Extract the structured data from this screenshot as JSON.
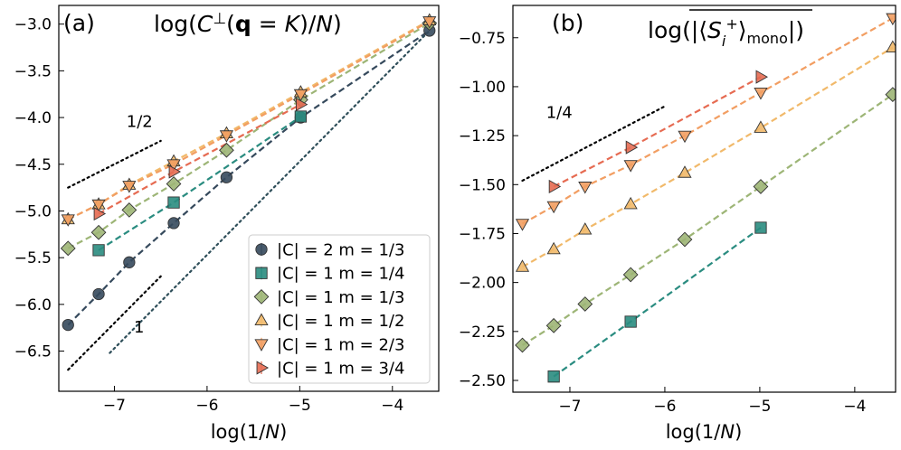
{
  "chart_data": [
    {
      "type": "line",
      "panel_label": "(a)",
      "title": "log(C⊥(q = K)/N)",
      "xlabel": "log(1/N)",
      "ylabel": "",
      "xlim": [
        -7.6,
        -3.5
      ],
      "ylim": [
        -6.93,
        -2.8
      ],
      "xticks": [
        -7,
        -6,
        -5,
        -4
      ],
      "xtick_labels": [
        "−7",
        "−6",
        "−5",
        "−4"
      ],
      "yticks": [
        -6.5,
        -6.0,
        -5.5,
        -5.0,
        -4.5,
        -4.0,
        -3.5,
        -3.0
      ],
      "ytick_labels": [
        "−6.5",
        "−6.0",
        "−5.5",
        "−5.0",
        "−4.5",
        "−4.0",
        "−3.5",
        "−3.0"
      ],
      "series": [
        {
          "name": "|C| = 2 m = 1/3",
          "color": "#35495c",
          "marker": "circle",
          "x": [
            -7.5,
            -7.17,
            -6.84,
            -6.36,
            -5.79,
            -4.99,
            -3.6
          ],
          "y": [
            -6.22,
            -5.89,
            -5.55,
            -5.13,
            -4.64,
            -4.0,
            -3.07
          ]
        },
        {
          "name": "|C| = 1 m = 1/4",
          "color": "#2a8c80",
          "marker": "square",
          "x": [
            -7.17,
            -6.36,
            -4.99
          ],
          "y": [
            -5.42,
            -4.91,
            -3.99
          ]
        },
        {
          "name": "|C| = 1 m = 1/3",
          "color": "#9db576",
          "marker": "diamond",
          "x": [
            -7.5,
            -7.17,
            -6.84,
            -6.36,
            -5.79,
            -4.99,
            -3.6
          ],
          "y": [
            -5.4,
            -5.23,
            -4.99,
            -4.71,
            -4.35,
            -3.81,
            -2.99
          ]
        },
        {
          "name": "|C| = 1 m = 1/2",
          "color": "#f1b96a",
          "marker": "triangle-up",
          "x": [
            -7.5,
            -7.17,
            -6.84,
            -6.36,
            -5.79,
            -4.99,
            -3.6
          ],
          "y": [
            -5.09,
            -4.93,
            -4.72,
            -4.47,
            -4.17,
            -3.73,
            -2.96
          ]
        },
        {
          "name": "|C| = 1 m = 2/3",
          "color": "#f29e62",
          "marker": "triangle-down",
          "x": [
            -7.5,
            -7.17,
            -6.84,
            -6.36,
            -5.79,
            -4.99,
            -3.6
          ],
          "y": [
            -5.09,
            -4.93,
            -4.73,
            -4.5,
            -4.19,
            -3.75,
            -2.97
          ]
        },
        {
          "name": "|C| = 1 m = 3/4",
          "color": "#e66b52",
          "marker": "triangle-right",
          "x": [
            -7.17,
            -6.36,
            -4.99
          ],
          "y": [
            -5.03,
            -4.58,
            -3.86
          ]
        }
      ],
      "guides": [
        {
          "label": "1/2",
          "slope": 0.5,
          "x": [
            -7.5,
            -6.5
          ],
          "y": [
            -4.75,
            -4.25
          ]
        },
        {
          "label": "1",
          "slope": 1,
          "x": [
            -7.5,
            -6.5
          ],
          "y": [
            -6.7,
            -5.7
          ]
        },
        {
          "label": "",
          "slope": 1,
          "x": [
            -7.05,
            -3.6
          ],
          "y": [
            -6.52,
            -3.07
          ]
        }
      ],
      "guide_labels": [
        {
          "text": "1/2",
          "x": -6.87,
          "y": -4.1
        },
        {
          "text": "1",
          "x": -6.79,
          "y": -6.3
        }
      ],
      "legend": "lower-right"
    },
    {
      "type": "line",
      "panel_label": "(b)",
      "title": "log(|⟨Sᵢ⁺⟩mono|)",
      "xlabel": "log(1/N)",
      "ylabel": "",
      "xlim": [
        -7.6,
        -3.57
      ],
      "ylim": [
        -2.56,
        -0.585
      ],
      "xticks": [
        -7,
        -6,
        -5,
        -4
      ],
      "xtick_labels": [
        "−7",
        "−6",
        "−5",
        "−4"
      ],
      "yticks": [
        -2.5,
        -2.25,
        -2.0,
        -1.75,
        -1.5,
        -1.25,
        -1.0,
        -0.75
      ],
      "ytick_labels": [
        "−2.50",
        "−2.25",
        "−2.00",
        "−1.75",
        "−1.50",
        "−1.25",
        "−1.00",
        "−0.75"
      ],
      "series": [
        {
          "name": "|C| = 1 m = 1/4",
          "color": "#2a8c80",
          "marker": "square",
          "x": [
            -7.17,
            -6.36,
            -4.99
          ],
          "y": [
            -2.48,
            -2.2,
            -1.72
          ]
        },
        {
          "name": "|C| = 1 m = 1/3",
          "color": "#9db576",
          "marker": "diamond",
          "x": [
            -7.5,
            -7.17,
            -6.84,
            -6.36,
            -5.79,
            -4.99,
            -3.6
          ],
          "y": [
            -2.32,
            -2.22,
            -2.11,
            -1.96,
            -1.78,
            -1.51,
            -1.04
          ]
        },
        {
          "name": "|C| = 1 m = 1/2",
          "color": "#f1b96a",
          "marker": "triangle-up",
          "x": [
            -7.5,
            -7.17,
            -6.84,
            -6.36,
            -5.79,
            -4.99,
            -3.6
          ],
          "y": [
            -1.92,
            -1.83,
            -1.73,
            -1.6,
            -1.44,
            -1.21,
            -0.8
          ]
        },
        {
          "name": "|C| = 1 m = 2/3",
          "color": "#f29e62",
          "marker": "triangle-down",
          "x": [
            -7.5,
            -7.17,
            -6.84,
            -6.36,
            -5.79,
            -4.99,
            -3.6
          ],
          "y": [
            -1.7,
            -1.61,
            -1.51,
            -1.4,
            -1.25,
            -1.03,
            -0.65
          ]
        },
        {
          "name": "|C| = 1 m = 3/4",
          "color": "#e66b52",
          "marker": "triangle-right",
          "x": [
            -7.17,
            -6.36,
            -4.99
          ],
          "y": [
            -1.51,
            -1.31,
            -0.95
          ]
        }
      ],
      "guides": [
        {
          "label": "1/4",
          "slope": 0.25,
          "x": [
            -7.5,
            -6.0
          ],
          "y": [
            -1.48,
            -1.1
          ]
        }
      ],
      "guide_labels": [
        {
          "text": "1/4",
          "x": -7.25,
          "y": -1.16
        }
      ]
    }
  ]
}
